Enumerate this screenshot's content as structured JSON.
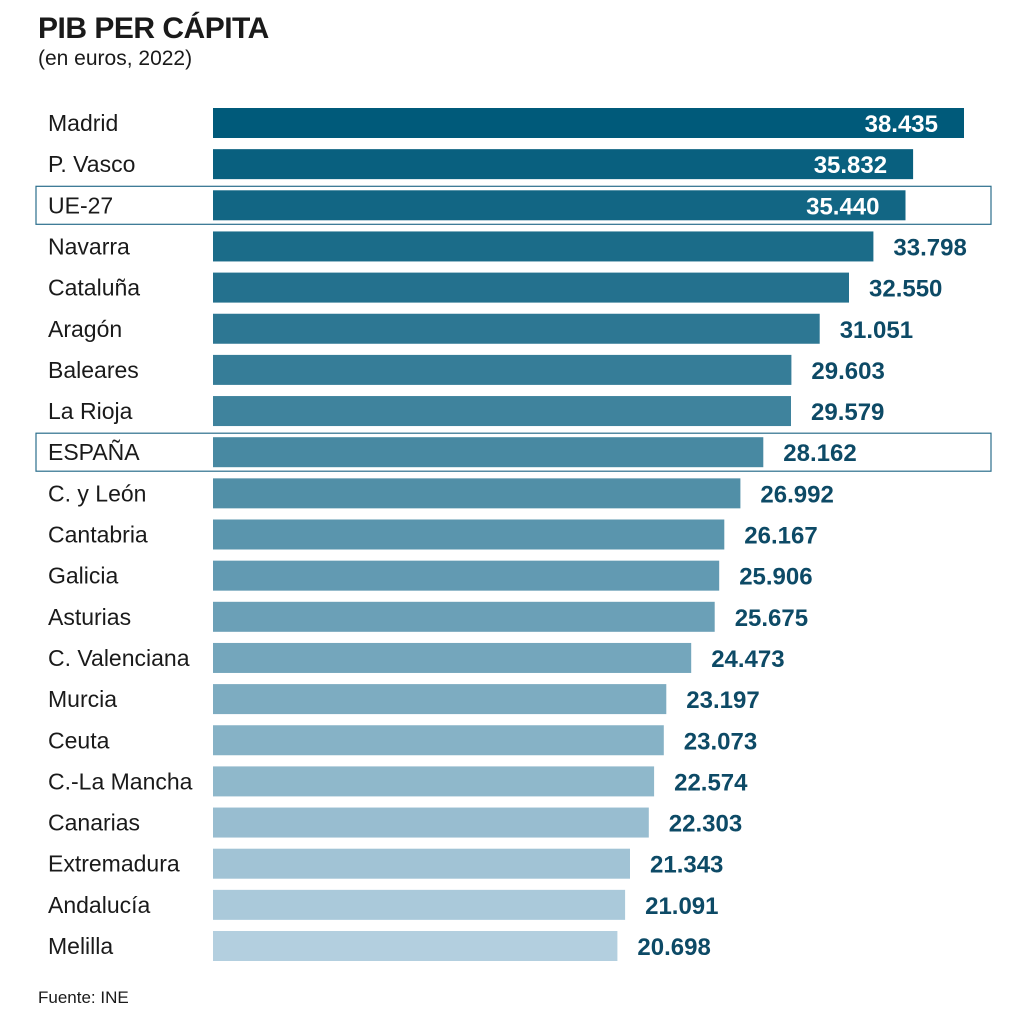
{
  "header": {
    "title": "PIB PER CÁPITA",
    "subtitle": "(en euros, 2022)"
  },
  "footer": {
    "source": "Fuente: INE"
  },
  "colors": {
    "bar_dark": "#005a7a",
    "bar_light": "#b3cfdf",
    "value_text_inside": "#ffffff",
    "value_text_outside": "#0d4a66",
    "highlight_border": "#2b6e8c"
  },
  "chart_data": {
    "type": "bar",
    "orientation": "horizontal",
    "title": "PIB PER CÁPITA",
    "subtitle": "(en euros, 2022)",
    "xlim": [
      0,
      38435
    ],
    "grid": false,
    "categories": [
      "Madrid",
      "P. Vasco",
      "UE-27",
      "Navarra",
      "Cataluña",
      "Aragón",
      "Baleares",
      "La Rioja",
      "ESPAÑA",
      "C. y León",
      "Cantabria",
      "Galicia",
      "Asturias",
      "C. Valenciana",
      "Murcia",
      "Ceuta",
      "C.-La Mancha",
      "Canarias",
      "Extremadura",
      "Andalucía",
      "Melilla"
    ],
    "values": [
      38435,
      35832,
      35440,
      33798,
      32550,
      31051,
      29603,
      29579,
      28162,
      26992,
      26167,
      25906,
      25675,
      24473,
      23197,
      23073,
      22574,
      22303,
      21343,
      21091,
      20698
    ],
    "value_labels": [
      "38.435",
      "35.832",
      "35.440",
      "33.798",
      "32.550",
      "31.051",
      "29.603",
      "29.579",
      "28.162",
      "26.992",
      "26.167",
      "25.906",
      "25.675",
      "24.473",
      "23.197",
      "23.073",
      "22.574",
      "22.303",
      "21.343",
      "21.091",
      "20.698"
    ],
    "highlighted": [
      "UE-27",
      "ESPAÑA"
    ],
    "labels_inside_bar": [
      "Madrid",
      "P. Vasco",
      "UE-27"
    ]
  }
}
